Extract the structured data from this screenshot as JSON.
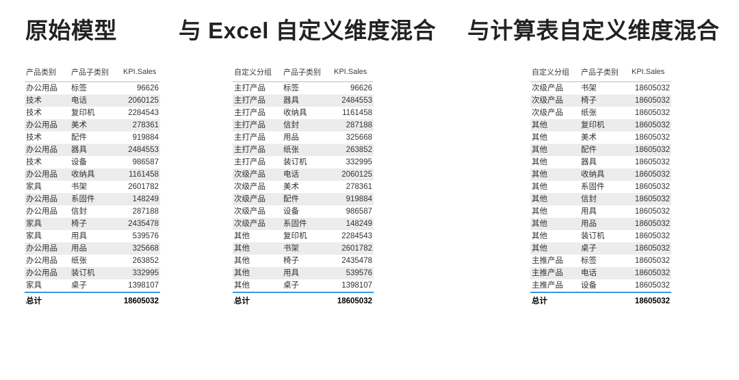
{
  "colors": {
    "stripe": "#ececec",
    "header_rule_blue": "#9cc6e8",
    "total_rule_blue": "#3a96e0",
    "text": "#333333"
  },
  "panels": [
    {
      "title": "原始模型",
      "columns": [
        "产品类别",
        "产品子类别",
        "KPI.Sales"
      ],
      "rows": [
        [
          "办公用品",
          "标签",
          "96626"
        ],
        [
          "技术",
          "电话",
          "2060125"
        ],
        [
          "技术",
          "复印机",
          "2284543"
        ],
        [
          "办公用品",
          "美术",
          "278361"
        ],
        [
          "技术",
          "配件",
          "919884"
        ],
        [
          "办公用品",
          "器具",
          "2484553"
        ],
        [
          "技术",
          "设备",
          "986587"
        ],
        [
          "办公用品",
          "收纳具",
          "1161458"
        ],
        [
          "家具",
          "书架",
          "2601782"
        ],
        [
          "办公用品",
          "系固件",
          "148249"
        ],
        [
          "办公用品",
          "信封",
          "287188"
        ],
        [
          "家具",
          "椅子",
          "2435478"
        ],
        [
          "家具",
          "用具",
          "539576"
        ],
        [
          "办公用品",
          "用品",
          "325668"
        ],
        [
          "办公用品",
          "纸张",
          "263852"
        ],
        [
          "办公用品",
          "装订机",
          "332995"
        ],
        [
          "家具",
          "桌子",
          "1398107"
        ]
      ],
      "total": {
        "label": "总计",
        "value": "18605032"
      }
    },
    {
      "title": "与 Excel 自定义维度混合",
      "columns": [
        "自定义分组",
        "产品子类别",
        "KPI.Sales"
      ],
      "rows": [
        [
          "主打产品",
          "标签",
          "96626"
        ],
        [
          "主打产品",
          "器具",
          "2484553"
        ],
        [
          "主打产品",
          "收纳具",
          "1161458"
        ],
        [
          "主打产品",
          "信封",
          "287188"
        ],
        [
          "主打产品",
          "用品",
          "325668"
        ],
        [
          "主打产品",
          "纸张",
          "263852"
        ],
        [
          "主打产品",
          "装订机",
          "332995"
        ],
        [
          "次级产品",
          "电话",
          "2060125"
        ],
        [
          "次级产品",
          "美术",
          "278361"
        ],
        [
          "次级产品",
          "配件",
          "919884"
        ],
        [
          "次级产品",
          "设备",
          "986587"
        ],
        [
          "次级产品",
          "系固件",
          "148249"
        ],
        [
          "其他",
          "复印机",
          "2284543"
        ],
        [
          "其他",
          "书架",
          "2601782"
        ],
        [
          "其他",
          "椅子",
          "2435478"
        ],
        [
          "其他",
          "用具",
          "539576"
        ],
        [
          "其他",
          "桌子",
          "1398107"
        ]
      ],
      "total": {
        "label": "总计",
        "value": "18605032"
      }
    },
    {
      "title": "与计算表自定义维度混合",
      "columns": [
        "自定义分组",
        "产品子类别",
        "KPI.Sales"
      ],
      "rows": [
        [
          "次级产品",
          "书架",
          "18605032"
        ],
        [
          "次级产品",
          "椅子",
          "18605032"
        ],
        [
          "次级产品",
          "纸张",
          "18605032"
        ],
        [
          "其他",
          "复印机",
          "18605032"
        ],
        [
          "其他",
          "美术",
          "18605032"
        ],
        [
          "其他",
          "配件",
          "18605032"
        ],
        [
          "其他",
          "器具",
          "18605032"
        ],
        [
          "其他",
          "收纳具",
          "18605032"
        ],
        [
          "其他",
          "系固件",
          "18605032"
        ],
        [
          "其他",
          "信封",
          "18605032"
        ],
        [
          "其他",
          "用具",
          "18605032"
        ],
        [
          "其他",
          "用品",
          "18605032"
        ],
        [
          "其他",
          "装订机",
          "18605032"
        ],
        [
          "其他",
          "桌子",
          "18605032"
        ],
        [
          "主推产品",
          "标签",
          "18605032"
        ],
        [
          "主推产品",
          "电话",
          "18605032"
        ],
        [
          "主推产品",
          "设备",
          "18605032"
        ]
      ],
      "total": {
        "label": "总计",
        "value": "18605032"
      }
    }
  ]
}
